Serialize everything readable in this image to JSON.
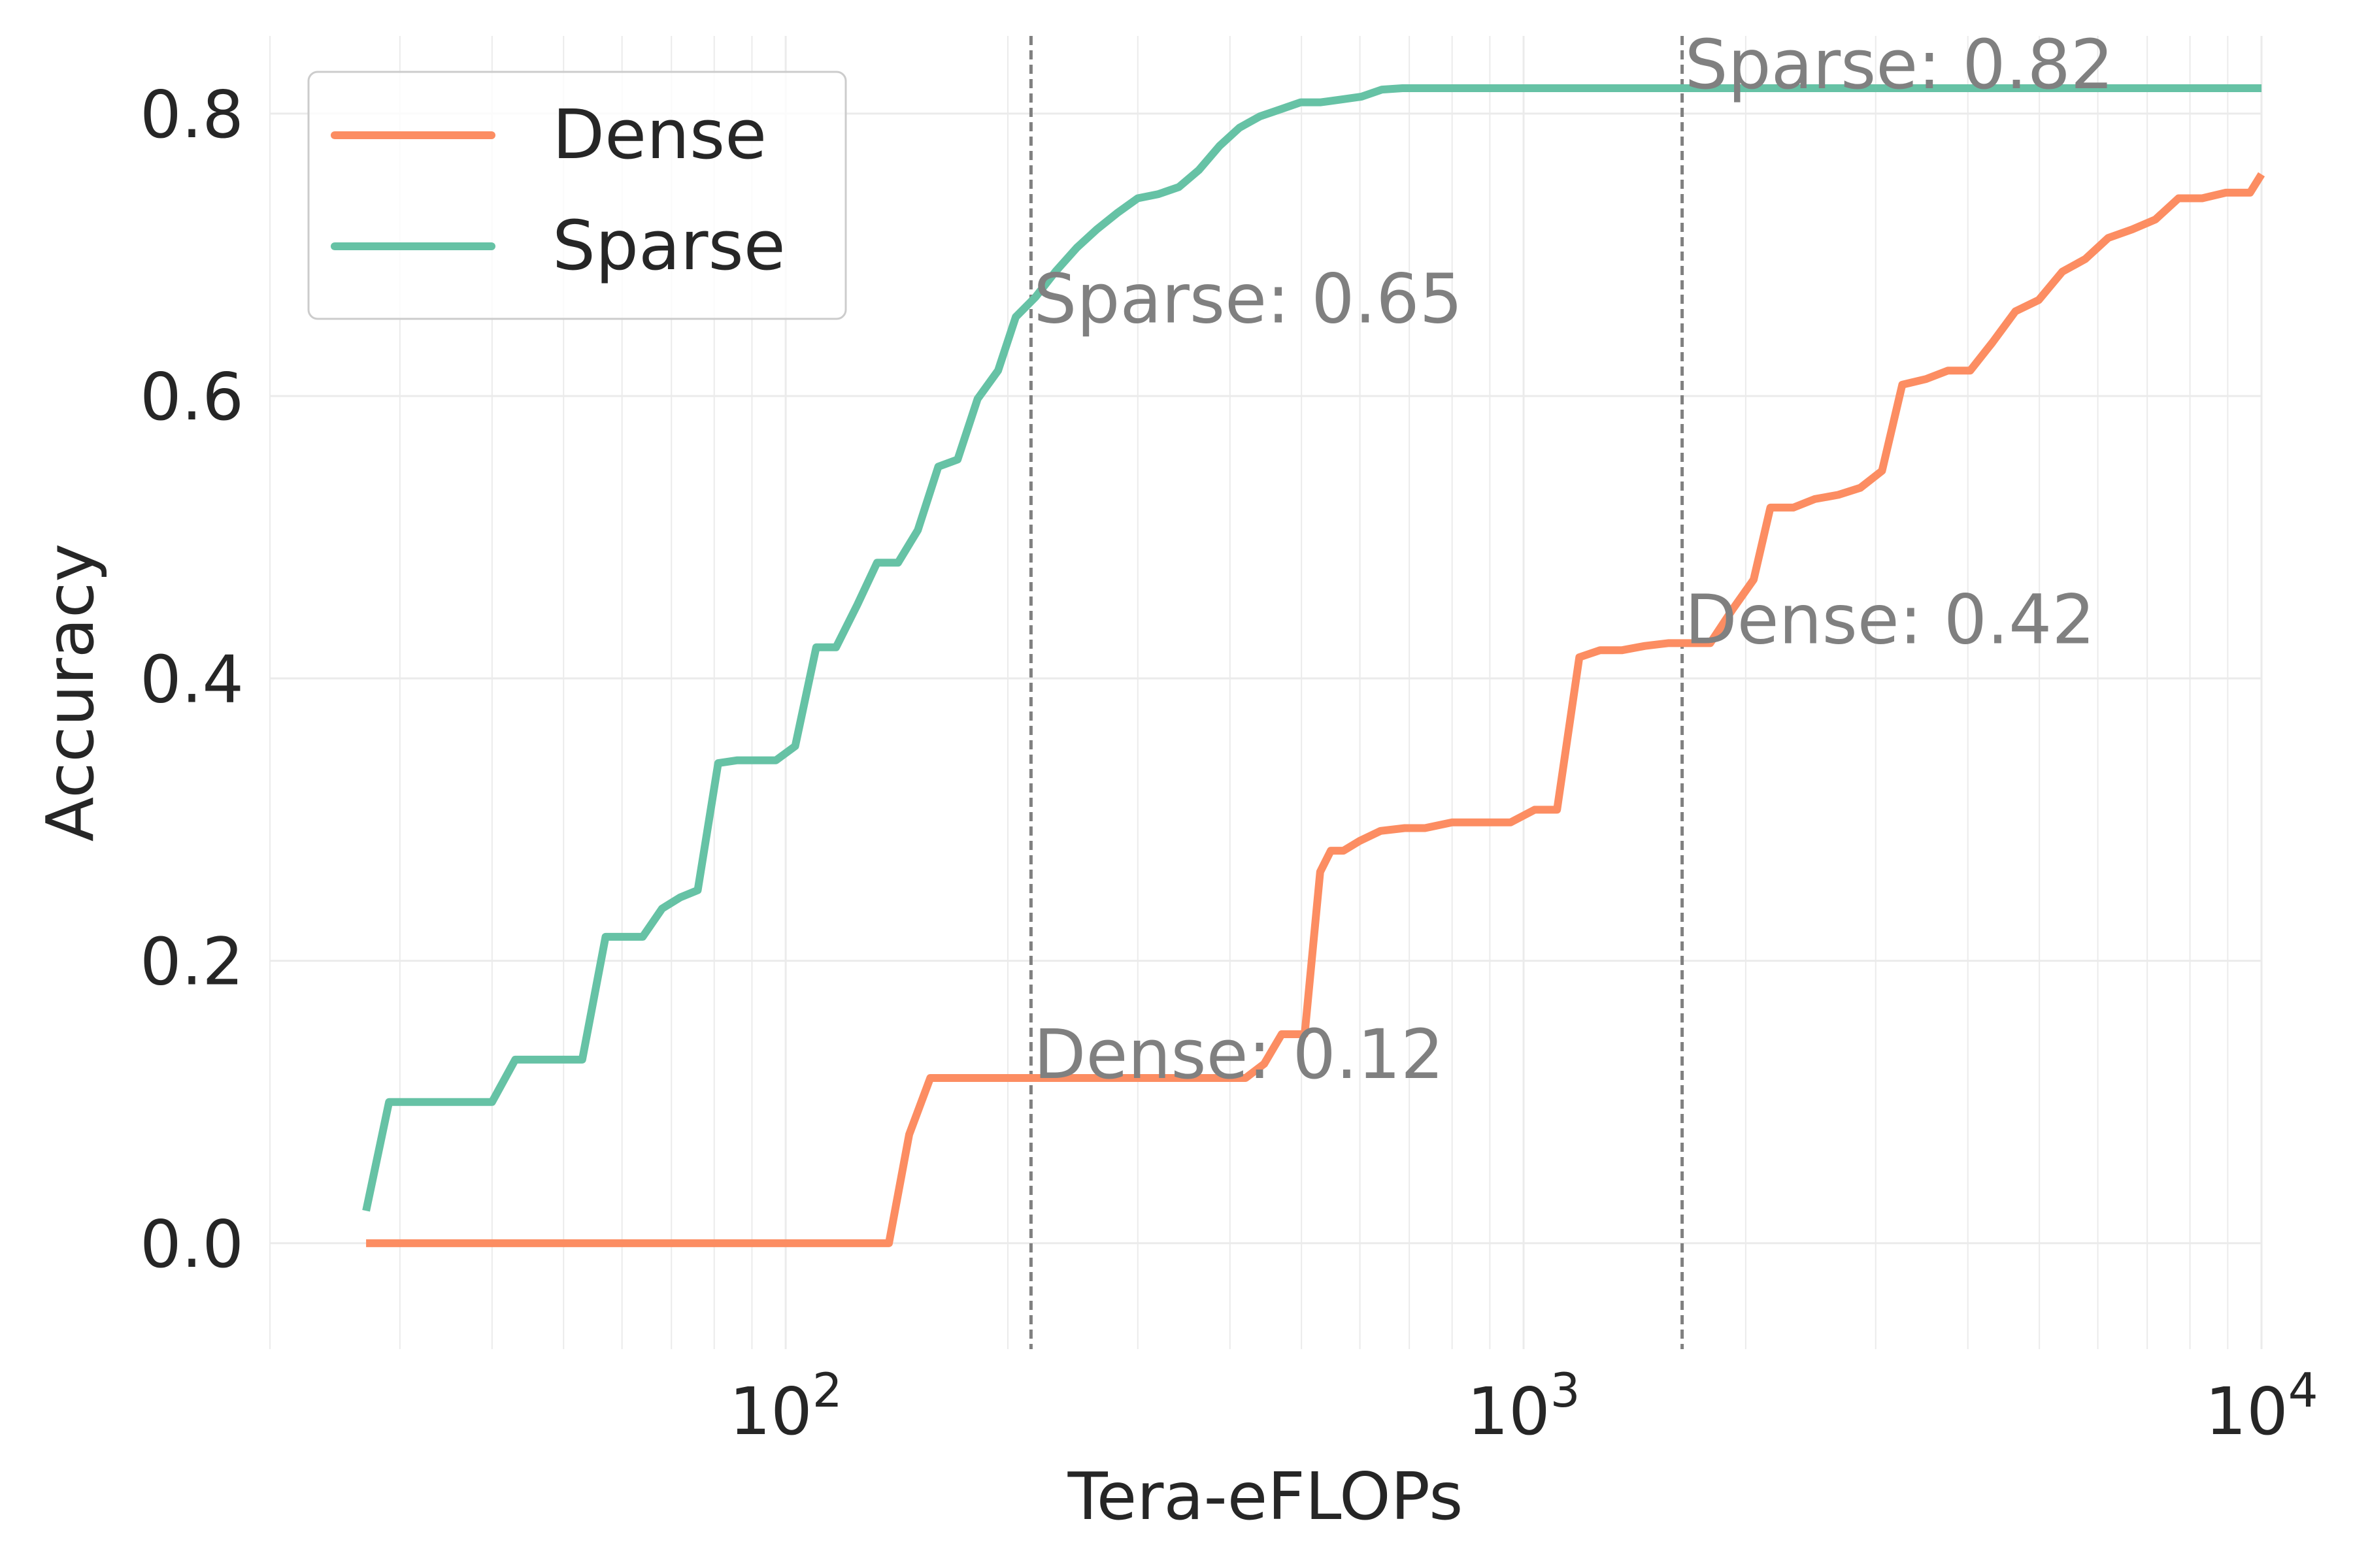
{
  "chart_data": {
    "type": "line",
    "title": "",
    "xlabel": "Tera-eFLOPs",
    "ylabel": "Accuracy",
    "x_scale": "log",
    "xlim": [
      20,
      10000
    ],
    "ylim": [
      -0.075,
      0.855
    ],
    "x_ticks": [
      {
        "value": 100,
        "base": "10",
        "exp": "2"
      },
      {
        "value": 1000,
        "base": "10",
        "exp": "3"
      },
      {
        "value": 10000,
        "base": "10",
        "exp": "4"
      }
    ],
    "y_ticks": [
      {
        "value": 0.0,
        "label": "0.0"
      },
      {
        "value": 0.2,
        "label": "0.2"
      },
      {
        "value": 0.4,
        "label": "0.4"
      },
      {
        "value": 0.6,
        "label": "0.6"
      },
      {
        "value": 0.8,
        "label": "0.8"
      }
    ],
    "grid": true,
    "legend_position": "top-left",
    "series": [
      {
        "name": "Dense",
        "color": "#fc8d62",
        "x": [
          27,
          138,
          147,
          157,
          175,
          210,
          260,
          330,
          420,
          445,
          470,
          505,
          530,
          548,
          570,
          600,
          640,
          690,
          735,
          800,
          860,
          960,
          1035,
          1110,
          1190,
          1270,
          1360,
          1460,
          1570,
          1680,
          1790,
          1920,
          2050,
          2160,
          2320,
          2480,
          2670,
          2860,
          3060,
          3260,
          3510,
          3760,
          4030,
          4320,
          4640,
          4990,
          5370,
          5770,
          6200,
          6680,
          7180,
          7720,
          8310,
          8950,
          9650,
          10000
        ],
        "y": [
          0.0,
          0.0,
          0.077,
          0.117,
          0.117,
          0.117,
          0.117,
          0.117,
          0.117,
          0.127,
          0.148,
          0.148,
          0.263,
          0.278,
          0.278,
          0.285,
          0.292,
          0.294,
          0.294,
          0.298,
          0.298,
          0.298,
          0.307,
          0.307,
          0.415,
          0.42,
          0.42,
          0.423,
          0.425,
          0.425,
          0.425,
          0.449,
          0.47,
          0.521,
          0.521,
          0.527,
          0.53,
          0.535,
          0.547,
          0.608,
          0.612,
          0.618,
          0.618,
          0.638,
          0.66,
          0.668,
          0.688,
          0.697,
          0.712,
          0.718,
          0.725,
          0.74,
          0.74,
          0.744,
          0.744,
          0.757
        ]
      },
      {
        "name": "Sparse",
        "color": "#66c2a5",
        "x": [
          27,
          29,
          33,
          37,
          40,
          43,
          46,
          50,
          53,
          57,
          60,
          64,
          68,
          72,
          76,
          81,
          86,
          91,
          97,
          103,
          110,
          117,
          125,
          133,
          142,
          151,
          161,
          171,
          182,
          194,
          205,
          218,
          232,
          248,
          264,
          282,
          300,
          320,
          341,
          363,
          387,
          412,
          439,
          468,
          499,
          531,
          566,
          603,
          643,
          685,
          730,
          778,
          829,
          883,
          941,
          1003,
          10000
        ],
        "y": [
          0.023,
          0.1,
          0.1,
          0.1,
          0.1,
          0.13,
          0.13,
          0.13,
          0.13,
          0.217,
          0.217,
          0.217,
          0.237,
          0.245,
          0.25,
          0.34,
          0.342,
          0.342,
          0.342,
          0.352,
          0.422,
          0.422,
          0.452,
          0.482,
          0.482,
          0.505,
          0.55,
          0.555,
          0.598,
          0.618,
          0.656,
          0.67,
          0.688,
          0.705,
          0.718,
          0.73,
          0.74,
          0.743,
          0.748,
          0.76,
          0.777,
          0.79,
          0.798,
          0.803,
          0.808,
          0.808,
          0.81,
          0.812,
          0.817,
          0.818,
          0.818,
          0.818,
          0.818,
          0.818,
          0.818,
          0.818,
          0.818
        ]
      }
    ],
    "vlines": [
      215,
      1640
    ],
    "annotations": [
      {
        "text": "Sparse: 0.65",
        "x": 215,
        "y": 0.652
      },
      {
        "text": "Dense: 0.12",
        "x": 215,
        "y": 0.117
      },
      {
        "text": "Sparse: 0.82",
        "x": 1640,
        "y": 0.818
      },
      {
        "text": "Dense: 0.42",
        "x": 1640,
        "y": 0.425
      }
    ]
  }
}
